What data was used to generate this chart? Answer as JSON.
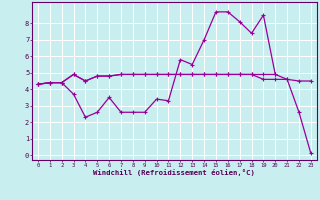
{
  "bg_color": "#c8eef0",
  "grid_color": "#ffffff",
  "line_color": "#990099",
  "xlabel": "Windchill (Refroidissement éolien,°C)",
  "xlim": [
    -0.5,
    23.5
  ],
  "ylim": [
    -0.3,
    9.3
  ],
  "xticks": [
    0,
    1,
    2,
    3,
    4,
    5,
    6,
    7,
    8,
    9,
    10,
    11,
    12,
    13,
    14,
    15,
    16,
    17,
    18,
    19,
    20,
    21,
    22,
    23
  ],
  "yticks": [
    0,
    1,
    2,
    3,
    4,
    5,
    6,
    7,
    8
  ],
  "series1_x": [
    0,
    1,
    2,
    3,
    4,
    5,
    6,
    7,
    8,
    9,
    10,
    11,
    12,
    13,
    14,
    15,
    16,
    17,
    18,
    19,
    20
  ],
  "series1_y": [
    4.3,
    4.4,
    4.4,
    4.9,
    4.5,
    4.8,
    4.8,
    4.9,
    4.9,
    4.9,
    4.9,
    4.9,
    4.9,
    4.9,
    4.9,
    4.9,
    4.9,
    4.9,
    4.9,
    4.9,
    4.9
  ],
  "series2_x": [
    0,
    1,
    2,
    3,
    4,
    5,
    6,
    7,
    8,
    9,
    10,
    11,
    12,
    13,
    14,
    15,
    16,
    17,
    18,
    19,
    20,
    21,
    22,
    23
  ],
  "series2_y": [
    4.3,
    4.4,
    4.4,
    4.9,
    4.5,
    4.8,
    4.8,
    4.9,
    4.9,
    4.9,
    4.9,
    4.9,
    4.9,
    4.9,
    4.9,
    4.9,
    4.9,
    4.9,
    4.9,
    4.6,
    4.6,
    4.6,
    4.5,
    4.5
  ],
  "series3_x": [
    0,
    1,
    2,
    3,
    4,
    5,
    6,
    7,
    8,
    9,
    10,
    11,
    12,
    13,
    14,
    15,
    16,
    17,
    18,
    19,
    20,
    21,
    22,
    23
  ],
  "series3_y": [
    4.3,
    4.4,
    4.4,
    3.7,
    2.3,
    2.6,
    3.5,
    2.6,
    2.6,
    2.6,
    3.4,
    3.3,
    5.8,
    5.5,
    7.0,
    8.7,
    8.7,
    8.1,
    7.4,
    8.5,
    4.9,
    4.6,
    2.6,
    0.1
  ]
}
